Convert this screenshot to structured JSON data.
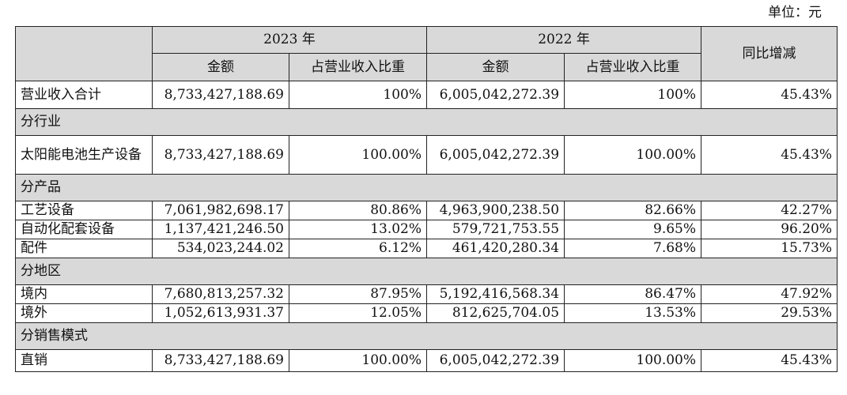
{
  "unit_label": "单位：元",
  "header": {
    "year_current": "2023 年",
    "year_previous": "2022 年",
    "amount": "金额",
    "share": "占营业收入比重",
    "yoy": "同比增减"
  },
  "rows": [
    {
      "type": "data",
      "label": "营业收入合计",
      "amt2023": "8,733,427,188.69",
      "pct2023": "100%",
      "amt2022": "6,005,042,272.39",
      "pct2022": "100%",
      "yoy": "45.43%"
    },
    {
      "type": "section",
      "label": "分行业"
    },
    {
      "type": "data",
      "label": "太阳能电池生产设备",
      "amt2023": "8,733,427,188.69",
      "pct2023": "100.00%",
      "amt2022": "6,005,042,272.39",
      "pct2022": "100.00%",
      "yoy": "45.43%"
    },
    {
      "type": "section",
      "label": "分产品"
    },
    {
      "type": "data",
      "label": "工艺设备",
      "amt2023": "7,061,982,698.17",
      "pct2023": "80.86%",
      "amt2022": "4,963,900,238.50",
      "pct2022": "82.66%",
      "yoy": "42.27%"
    },
    {
      "type": "data",
      "label": "自动化配套设备",
      "amt2023": "1,137,421,246.50",
      "pct2023": "13.02%",
      "amt2022": "579,721,753.55",
      "pct2022": "9.65%",
      "yoy": "96.20%"
    },
    {
      "type": "data",
      "label": "配件",
      "amt2023": "534,023,244.02",
      "pct2023": "6.12%",
      "amt2022": "461,420,280.34",
      "pct2022": "7.68%",
      "yoy": "15.73%"
    },
    {
      "type": "section",
      "label": "分地区"
    },
    {
      "type": "data",
      "label": "境内",
      "amt2023": "7,680,813,257.32",
      "pct2023": "87.95%",
      "amt2022": "5,192,416,568.34",
      "pct2022": "86.47%",
      "yoy": "47.92%"
    },
    {
      "type": "data",
      "label": "境外",
      "amt2023": "1,052,613,931.37",
      "pct2023": "12.05%",
      "amt2022": "812,625,704.05",
      "pct2022": "13.53%",
      "yoy": "29.53%"
    },
    {
      "type": "section",
      "label": "分销售模式"
    },
    {
      "type": "data",
      "label": "直销",
      "amt2023": "8,733,427,188.69",
      "pct2023": "100.00%",
      "amt2022": "6,005,042,272.39",
      "pct2022": "100.00%",
      "yoy": "45.43%"
    }
  ]
}
